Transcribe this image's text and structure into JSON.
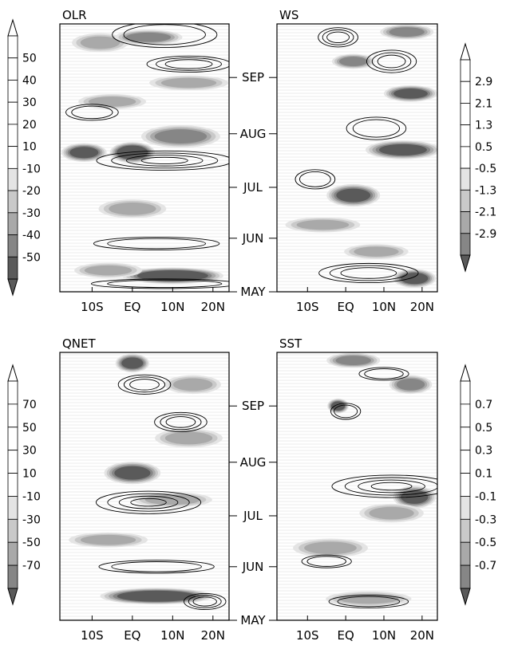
{
  "chart_data": {
    "type": "heatmap",
    "x_ticks": [
      "10S",
      "EQ",
      "10N",
      "20N"
    ],
    "y_ticks": [
      "MAY",
      "JUN",
      "JUL",
      "AUG",
      "SEP"
    ],
    "panels": [
      {
        "title": "OLR",
        "colorbar_labels": [
          "50",
          "40",
          "30",
          "20",
          "10",
          "-10",
          "-20",
          "-30",
          "-40",
          "-50"
        ],
        "blobs": [
          {
            "lon": -8,
            "time": 0.93,
            "level": 2,
            "rx": 5,
            "rt": 0.025
          },
          {
            "lon": 4,
            "time": 0.95,
            "level": 3,
            "rx": 6,
            "rt": 0.02
          },
          {
            "lon": 14,
            "time": 0.78,
            "level": 2,
            "rx": 7,
            "rt": 0.02
          },
          {
            "lon": -5,
            "time": 0.71,
            "level": 2,
            "rx": 6,
            "rt": 0.02
          },
          {
            "lon": -12,
            "time": 0.52,
            "level": 4,
            "rx": 4,
            "rt": 0.025
          },
          {
            "lon": 0,
            "time": 0.52,
            "level": 5,
            "rx": 4,
            "rt": 0.028
          },
          {
            "lon": 12,
            "time": 0.58,
            "level": 3,
            "rx": 7,
            "rt": 0.03
          },
          {
            "lon": 0,
            "time": 0.31,
            "level": 2,
            "rx": 6,
            "rt": 0.025
          },
          {
            "lon": 10,
            "time": 0.06,
            "level": 5,
            "rx": 9,
            "rt": 0.022
          },
          {
            "lon": -6,
            "time": 0.08,
            "level": 2,
            "rx": 6,
            "rt": 0.02
          }
        ]
      },
      {
        "title": "WS",
        "colorbar_labels": [
          "2.9",
          "2.1",
          "1.3",
          "0.5",
          "-0.5",
          "-1.3",
          "-2.1",
          "-2.9"
        ],
        "blobs": [
          {
            "lon": 2,
            "time": 0.86,
            "level": 3,
            "rx": 4,
            "rt": 0.02
          },
          {
            "lon": 16,
            "time": 0.97,
            "level": 3,
            "rx": 5,
            "rt": 0.02
          },
          {
            "lon": 17,
            "time": 0.74,
            "level": 4,
            "rx": 5,
            "rt": 0.022
          },
          {
            "lon": 15,
            "time": 0.53,
            "level": 4,
            "rx": 7,
            "rt": 0.025
          },
          {
            "lon": 2,
            "time": 0.36,
            "level": 4,
            "rx": 5,
            "rt": 0.03
          },
          {
            "lon": -6,
            "time": 0.25,
            "level": 2,
            "rx": 7,
            "rt": 0.02
          },
          {
            "lon": 18,
            "time": 0.05,
            "level": 4,
            "rx": 4,
            "rt": 0.025
          },
          {
            "lon": 8,
            "time": 0.15,
            "level": 2,
            "rx": 6,
            "rt": 0.02
          }
        ]
      },
      {
        "title": "QNET",
        "colorbar_labels": [
          "70",
          "50",
          "30",
          "10",
          "-10",
          "-30",
          "-50",
          "-70"
        ],
        "blobs": [
          {
            "lon": 0,
            "time": 0.96,
            "level": 4,
            "rx": 3,
            "rt": 0.025
          },
          {
            "lon": 15,
            "time": 0.88,
            "level": 2,
            "rx": 5,
            "rt": 0.025
          },
          {
            "lon": 0,
            "time": 0.55,
            "level": 4,
            "rx": 5,
            "rt": 0.03
          },
          {
            "lon": 14,
            "time": 0.68,
            "level": 2,
            "rx": 6,
            "rt": 0.025
          },
          {
            "lon": 10,
            "time": 0.45,
            "level": 2,
            "rx": 7,
            "rt": 0.02
          },
          {
            "lon": 6,
            "time": 0.09,
            "level": 5,
            "rx": 10,
            "rt": 0.022
          },
          {
            "lon": -6,
            "time": 0.3,
            "level": 2,
            "rx": 7,
            "rt": 0.02
          }
        ]
      },
      {
        "title": "SST",
        "colorbar_labels": [
          "0.7",
          "0.5",
          "0.3",
          "0.1",
          "-0.1",
          "-0.3",
          "-0.5",
          "-0.7"
        ],
        "blobs": [
          {
            "lon": 2,
            "time": 0.97,
            "level": 3,
            "rx": 5,
            "rt": 0.02
          },
          {
            "lon": 17,
            "time": 0.88,
            "level": 3,
            "rx": 4,
            "rt": 0.025
          },
          {
            "lon": -2,
            "time": 0.8,
            "level": 4,
            "rx": 2,
            "rt": 0.02
          },
          {
            "lon": 18,
            "time": 0.46,
            "level": 4,
            "rx": 4,
            "rt": 0.03
          },
          {
            "lon": 12,
            "time": 0.4,
            "level": 2,
            "rx": 6,
            "rt": 0.025
          },
          {
            "lon": -4,
            "time": 0.27,
            "level": 2,
            "rx": 7,
            "rt": 0.025
          },
          {
            "lon": 6,
            "time": 0.08,
            "level": 2,
            "rx": 8,
            "rt": 0.02
          }
        ]
      }
    ],
    "contour_sets": [
      [
        {
          "lon": 8,
          "time": 0.96,
          "rx": 10,
          "rt": 0.04,
          "rings": 2
        },
        {
          "lon": 14,
          "time": 0.85,
          "rx": 8,
          "rt": 0.025,
          "rings": 3
        },
        {
          "lon": -10,
          "time": 0.67,
          "rx": 5,
          "rt": 0.025,
          "rings": 2
        },
        {
          "lon": 8,
          "time": 0.49,
          "rx": 13,
          "rt": 0.03,
          "rings": 4
        },
        {
          "lon": 6,
          "time": 0.18,
          "rx": 12,
          "rt": 0.02,
          "rings": 2
        },
        {
          "lon": 8,
          "time": 0.03,
          "rx": 14,
          "rt": 0.015,
          "rings": 2
        }
      ],
      [
        {
          "lon": -2,
          "time": 0.95,
          "rx": 4,
          "rt": 0.03,
          "rings": 3
        },
        {
          "lon": 12,
          "time": 0.86,
          "rx": 5,
          "rt": 0.035,
          "rings": 3
        },
        {
          "lon": 8,
          "time": 0.61,
          "rx": 6,
          "rt": 0.035,
          "rings": 2
        },
        {
          "lon": -8,
          "time": 0.42,
          "rx": 4,
          "rt": 0.03,
          "rings": 2
        },
        {
          "lon": 6,
          "time": 0.07,
          "rx": 10,
          "rt": 0.03,
          "rings": 3
        }
      ],
      [
        {
          "lon": 3,
          "time": 0.88,
          "rx": 5,
          "rt": 0.03,
          "rings": 3
        },
        {
          "lon": 12,
          "time": 0.74,
          "rx": 5,
          "rt": 0.03,
          "rings": 3
        },
        {
          "lon": 4,
          "time": 0.44,
          "rx": 10,
          "rt": 0.035,
          "rings": 4
        },
        {
          "lon": 6,
          "time": 0.2,
          "rx": 11,
          "rt": 0.02,
          "rings": 2
        },
        {
          "lon": 18,
          "time": 0.07,
          "rx": 4,
          "rt": 0.025,
          "rings": 3
        }
      ],
      [
        {
          "lon": 10,
          "time": 0.92,
          "rx": 5,
          "rt": 0.02,
          "rings": 2
        },
        {
          "lon": 0,
          "time": 0.78,
          "rx": 3,
          "rt": 0.025,
          "rings": 2
        },
        {
          "lon": 12,
          "time": 0.5,
          "rx": 12,
          "rt": 0.035,
          "rings": 4
        },
        {
          "lon": -5,
          "time": 0.22,
          "rx": 5,
          "rt": 0.02,
          "rings": 2
        },
        {
          "lon": 6,
          "time": 0.07,
          "rx": 8,
          "rt": 0.02,
          "rings": 2
        }
      ]
    ]
  },
  "colors": {
    "shade_levels": [
      "#e4e4e4",
      "#c9c9c9",
      "#a9a9a9",
      "#868686",
      "#5a5a5a"
    ],
    "grid_line": "#d8d8d8",
    "axis": "#000000"
  }
}
